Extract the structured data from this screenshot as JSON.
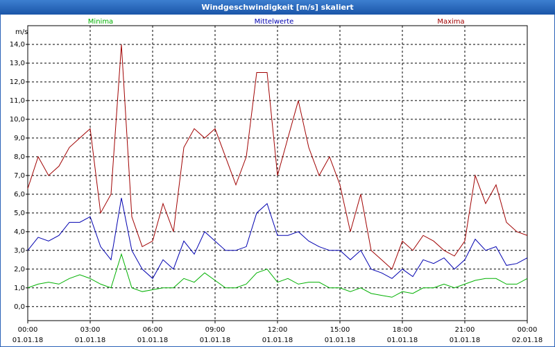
{
  "chart_data": {
    "type": "line",
    "title": "Windgeschwindigkeit [m/s] skaliert",
    "y_unit": "m/s",
    "x": [
      0,
      0.5,
      1,
      1.5,
      2,
      2.5,
      3,
      3.5,
      4,
      4.5,
      5,
      5.5,
      6,
      6.5,
      7,
      7.5,
      8,
      8.5,
      9,
      9.5,
      10,
      10.5,
      11,
      11.5,
      12,
      12.5,
      13,
      13.5,
      14,
      14.5,
      15,
      15.5,
      16,
      16.5,
      17,
      17.5,
      18,
      18.5,
      19,
      19.5,
      20,
      20.5,
      21,
      21.5,
      22,
      22.5,
      23,
      23.5,
      24
    ],
    "series": [
      {
        "name": "Minima",
        "color": "#00b000",
        "values": [
          1.0,
          1.2,
          1.3,
          1.2,
          1.5,
          1.7,
          1.5,
          1.2,
          1.0,
          2.8,
          1.0,
          0.8,
          0.9,
          1.0,
          1.0,
          1.5,
          1.3,
          1.8,
          1.4,
          1.0,
          1.0,
          1.2,
          1.8,
          2.0,
          1.3,
          1.5,
          1.2,
          1.3,
          1.3,
          1.0,
          1.0,
          0.8,
          1.0,
          0.7,
          0.6,
          0.5,
          0.8,
          0.7,
          1.0,
          1.0,
          1.2,
          1.0,
          1.2,
          1.4,
          1.5,
          1.5,
          1.2,
          1.2,
          1.5
        ]
      },
      {
        "name": "Mittelwerte",
        "color": "#0000b0",
        "values": [
          3.0,
          3.7,
          3.5,
          3.8,
          4.5,
          4.5,
          4.8,
          3.2,
          2.5,
          5.8,
          3.0,
          2.0,
          1.5,
          2.5,
          2.0,
          3.5,
          2.8,
          4.0,
          3.5,
          3.0,
          3.0,
          3.2,
          5.0,
          5.5,
          3.8,
          3.8,
          4.0,
          3.5,
          3.2,
          3.0,
          3.0,
          2.5,
          3.0,
          2.0,
          1.8,
          1.5,
          2.0,
          1.6,
          2.5,
          2.3,
          2.6,
          2.0,
          2.5,
          3.6,
          3.0,
          3.2,
          2.2,
          2.3,
          2.6
        ]
      },
      {
        "name": "Maxima",
        "color": "#a00000",
        "values": [
          6.3,
          8.0,
          7.0,
          7.5,
          8.5,
          9.0,
          9.5,
          5.0,
          6.0,
          14.0,
          4.8,
          3.2,
          3.5,
          5.5,
          4.0,
          8.5,
          9.5,
          9.0,
          9.5,
          8.0,
          6.5,
          8.0,
          12.5,
          12.5,
          7.0,
          9.0,
          11.0,
          8.5,
          7.0,
          8.0,
          6.5,
          4.0,
          6.0,
          3.0,
          2.5,
          2.0,
          3.5,
          3.0,
          3.8,
          3.5,
          3.0,
          2.7,
          3.5,
          7.0,
          5.5,
          6.5,
          4.5,
          4.0,
          3.8
        ]
      }
    ],
    "xlim": [
      0,
      24
    ],
    "xticks": [
      {
        "value": 0,
        "label": "00:00"
      },
      {
        "value": 3,
        "label": "03:00"
      },
      {
        "value": 6,
        "label": "06:00"
      },
      {
        "value": 9,
        "label": "09:00"
      },
      {
        "value": 12,
        "label": "12:00"
      },
      {
        "value": 15,
        "label": "15:00"
      },
      {
        "value": 18,
        "label": "18:00"
      },
      {
        "value": 21,
        "label": "21:00"
      },
      {
        "value": 24,
        "label": "00:00"
      }
    ],
    "xtick_dates": [
      "01.01.18",
      "01.01.18",
      "01.01.18",
      "01.01.18",
      "01.01.18",
      "01.01.18",
      "01.01.18",
      "01.01.18",
      "02.01.18"
    ],
    "ylim": [
      -0.75,
      15
    ],
    "yticks": [
      {
        "value": 0,
        "label": "0,0"
      },
      {
        "value": 1,
        "label": "1,0"
      },
      {
        "value": 2,
        "label": "2,0"
      },
      {
        "value": 3,
        "label": "3,0"
      },
      {
        "value": 4,
        "label": "4,0"
      },
      {
        "value": 5,
        "label": "5,0"
      },
      {
        "value": 6,
        "label": "6,0"
      },
      {
        "value": 7,
        "label": "7,0"
      },
      {
        "value": 8,
        "label": "8,0"
      },
      {
        "value": 9,
        "label": "9,0"
      },
      {
        "value": 10,
        "label": "10,0"
      },
      {
        "value": 11,
        "label": "11,0"
      },
      {
        "value": 12,
        "label": "12,0"
      },
      {
        "value": 13,
        "label": "13,0"
      },
      {
        "value": 14,
        "label": "14,0"
      }
    ],
    "grid": true
  }
}
